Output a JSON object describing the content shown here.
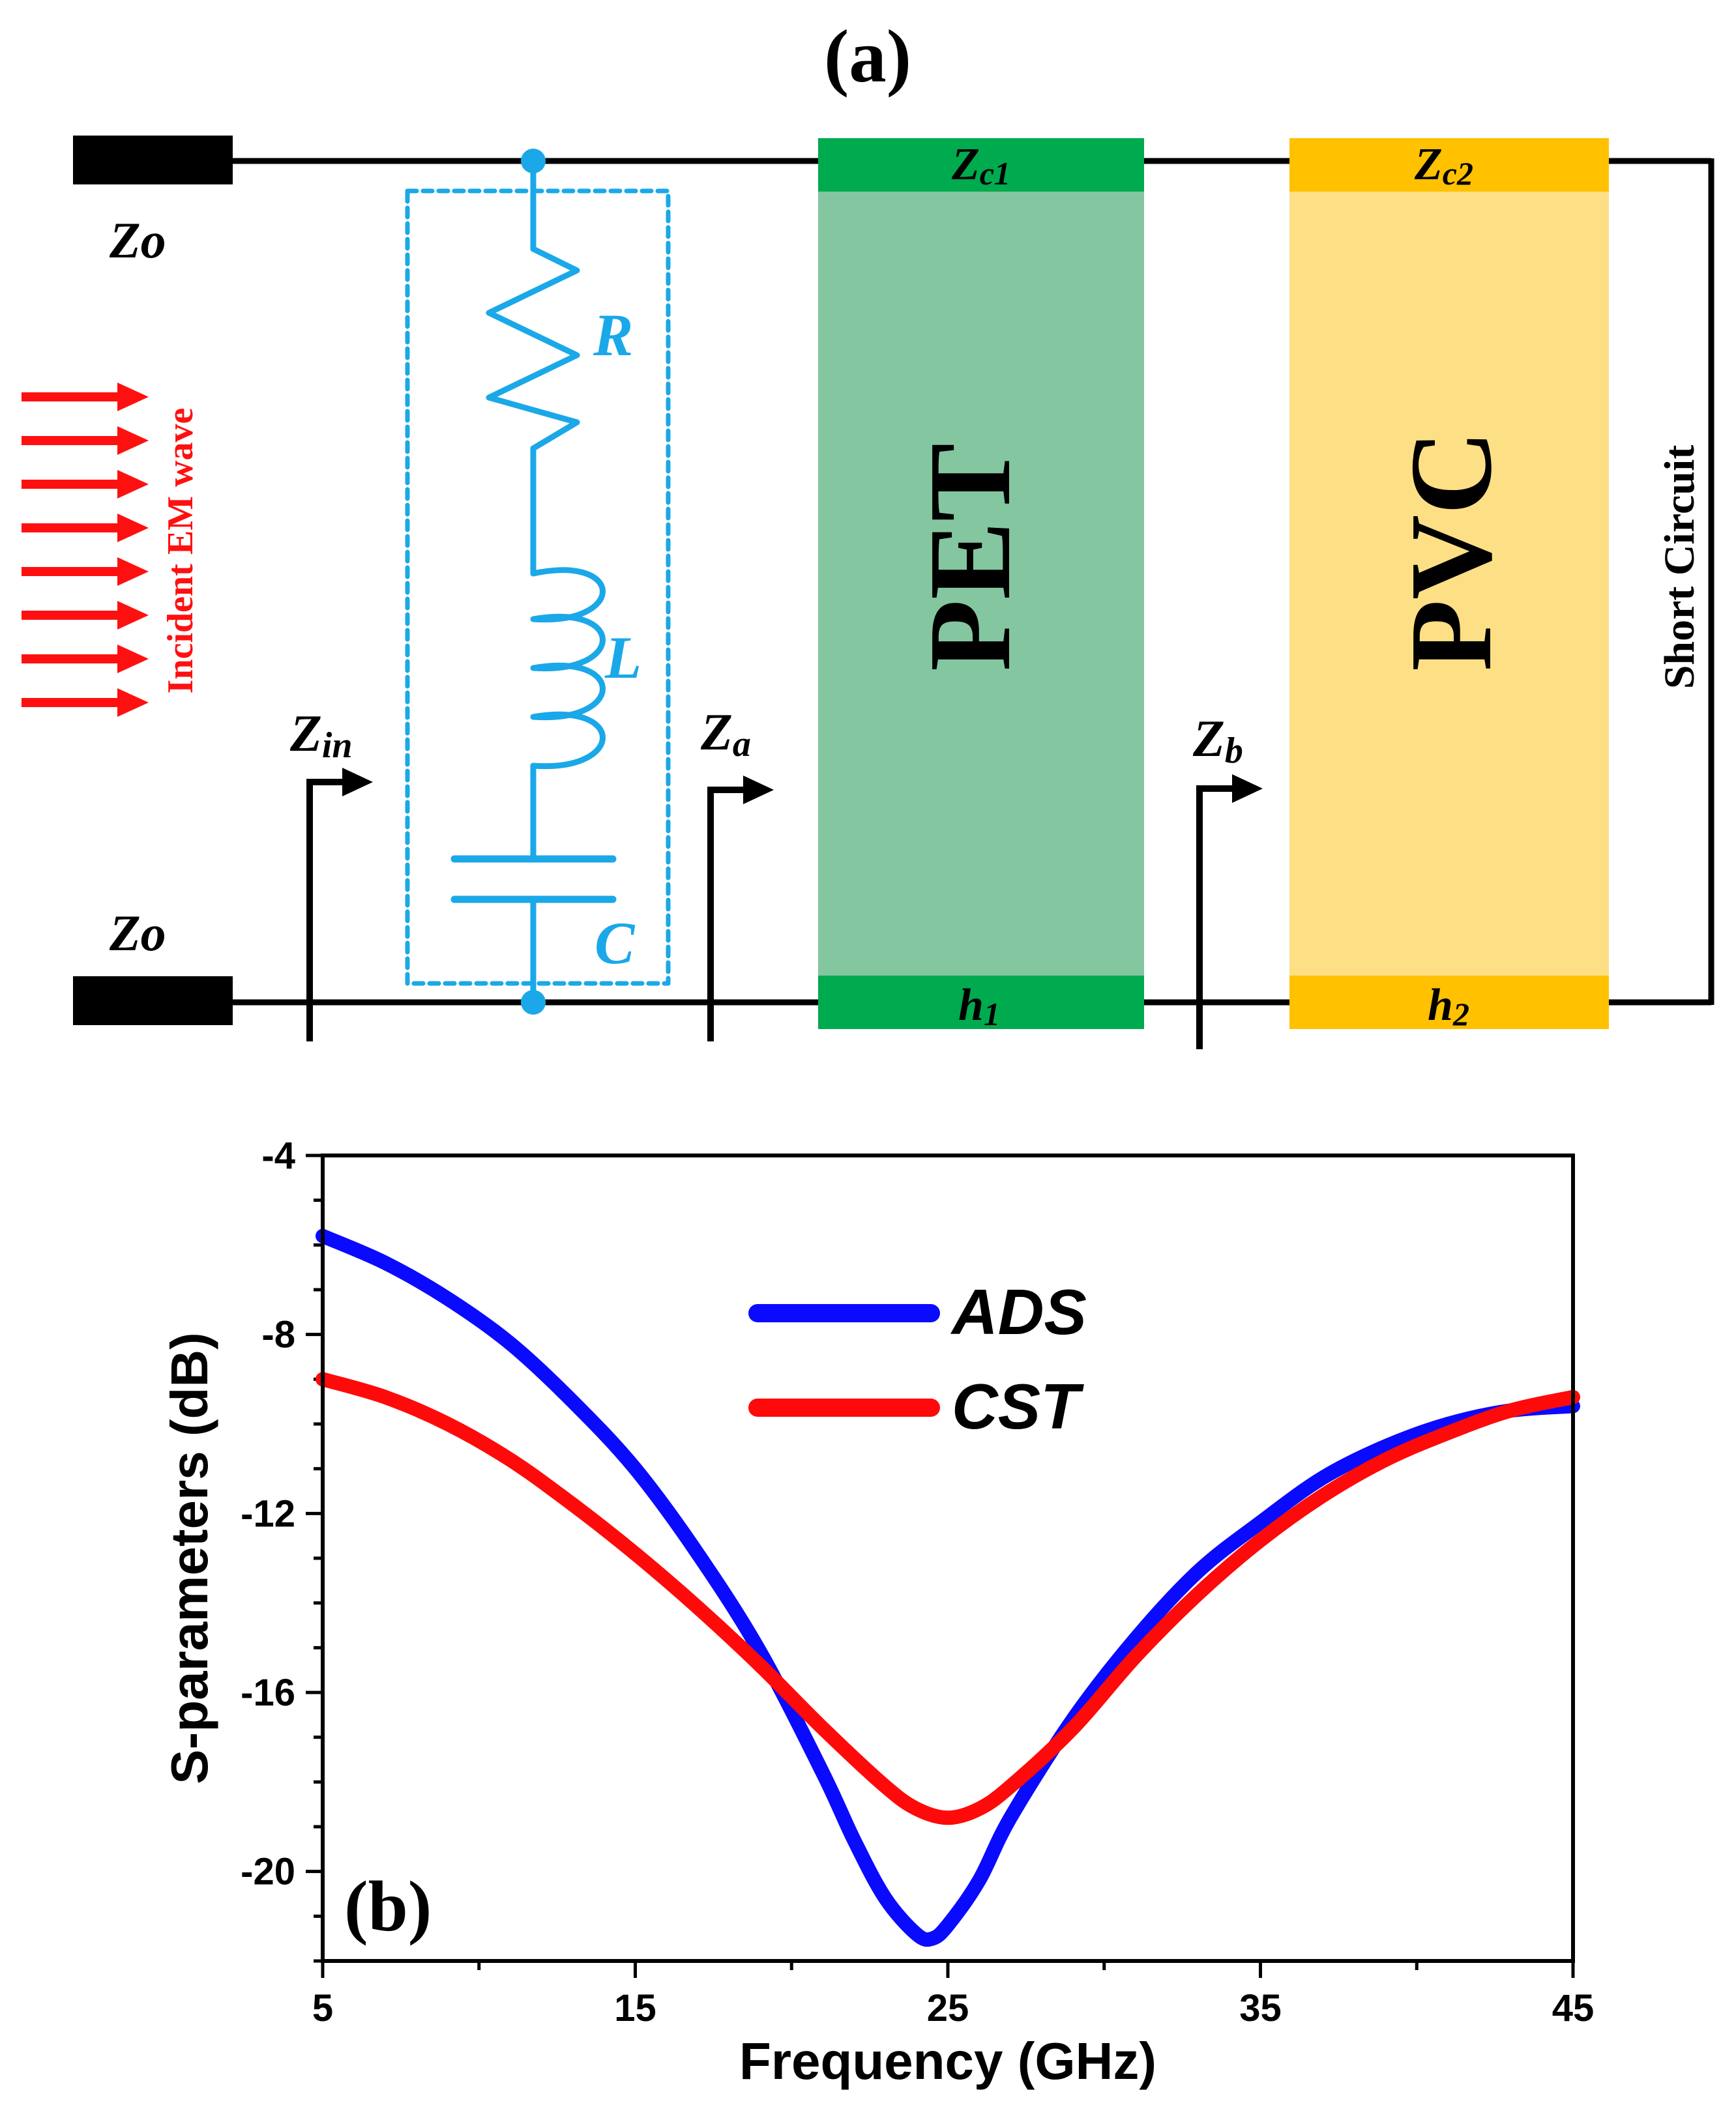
{
  "panel_a": {
    "label": "(a)",
    "port_top": "Zo",
    "port_bottom": "Zo",
    "incident_wave": "Incident EM wave",
    "components": {
      "R": "R",
      "L": "L",
      "C": "C"
    },
    "impedance_in": {
      "main": "Z",
      "sub": "in"
    },
    "impedance_a": {
      "main": "Z",
      "sub": "a"
    },
    "impedance_b": {
      "main": "Z",
      "sub": "b"
    },
    "layer1": {
      "name": "PET",
      "impedance_main": "Z",
      "impedance_sub": "c1",
      "thickness_main": "h",
      "thickness_sub": "1"
    },
    "layer2": {
      "name": "PVC",
      "impedance_main": "Z",
      "impedance_sub": "c2",
      "thickness_main": "h",
      "thickness_sub": "2"
    },
    "short_circuit": "Short Circuit",
    "colors": {
      "circuit": "#1BA8E8",
      "wave": "#FF1010",
      "pet_dark": "#00AA4E",
      "pet_light": "#84C6A0",
      "pvc_dark": "#FFC100",
      "pvc_light": "#FDDF85"
    }
  },
  "panel_b": {
    "label": "(b)"
  },
  "chart_data": {
    "type": "line",
    "title": "",
    "xlabel": "Frequency (GHz)",
    "ylabel": "S-parameters (dB)",
    "xlim": [
      5,
      45
    ],
    "ylim": [
      -22,
      -4
    ],
    "xticks": [
      5,
      15,
      25,
      35,
      45
    ],
    "yticks": [
      -4,
      -8,
      -12,
      -16,
      -20
    ],
    "legend_position": "top-center",
    "series": [
      {
        "name": "ADS",
        "color": "#0A0AFF",
        "x": [
          5,
          7,
          9,
          11,
          13,
          15,
          17,
          19,
          21,
          22,
          23,
          24,
          24.5,
          25,
          26,
          27,
          29,
          31,
          33,
          35,
          37,
          39,
          41,
          43,
          45
        ],
        "y": [
          -5.8,
          -6.4,
          -7.2,
          -8.2,
          -9.5,
          -11.0,
          -12.9,
          -15.1,
          -17.8,
          -19.3,
          -20.6,
          -21.4,
          -21.5,
          -21.2,
          -20.2,
          -18.8,
          -16.6,
          -14.8,
          -13.3,
          -12.2,
          -11.2,
          -10.5,
          -10.0,
          -9.7,
          -9.6
        ]
      },
      {
        "name": "CST",
        "color": "#FF0A0A",
        "x": [
          5,
          7,
          9,
          11,
          13,
          15,
          17,
          19,
          21,
          23,
          24,
          25,
          26,
          27,
          29,
          31,
          33,
          35,
          37,
          39,
          41,
          43,
          45
        ],
        "y": [
          -9.0,
          -9.4,
          -10.0,
          -10.8,
          -11.8,
          -12.9,
          -14.1,
          -15.4,
          -16.8,
          -18.1,
          -18.6,
          -18.8,
          -18.6,
          -18.1,
          -16.8,
          -15.2,
          -13.8,
          -12.6,
          -11.6,
          -10.8,
          -10.2,
          -9.7,
          -9.4
        ]
      }
    ]
  }
}
